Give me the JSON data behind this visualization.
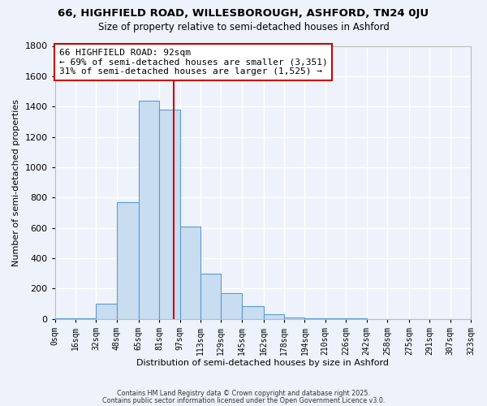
{
  "title_line1": "66, HIGHFIELD ROAD, WILLESBOROUGH, ASHFORD, TN24 0JU",
  "title_line2": "Size of property relative to semi-detached houses in Ashford",
  "xlabel": "Distribution of semi-detached houses by size in Ashford",
  "ylabel": "Number of semi-detached properties",
  "bin_edges": [
    0,
    16,
    32,
    48,
    65,
    81,
    97,
    113,
    129,
    145,
    162,
    178,
    194,
    210,
    226,
    242,
    258,
    275,
    291,
    307,
    323
  ],
  "bin_labels": [
    "0sqm",
    "16sqm",
    "32sqm",
    "48sqm",
    "65sqm",
    "81sqm",
    "97sqm",
    "113sqm",
    "129sqm",
    "145sqm",
    "162sqm",
    "178sqm",
    "194sqm",
    "210sqm",
    "226sqm",
    "242sqm",
    "258sqm",
    "275sqm",
    "291sqm",
    "307sqm",
    "323sqm"
  ],
  "counts": [
    2,
    2,
    100,
    770,
    1440,
    1380,
    610,
    300,
    170,
    85,
    30,
    10,
    5,
    2,
    1,
    0,
    0,
    0,
    0,
    0
  ],
  "bar_color": "#c9ddf0",
  "bar_edge_color": "#5b9bd5",
  "vline_color": "#cc0000",
  "vline_x": 92,
  "annotation_title": "66 HIGHFIELD ROAD: 92sqm",
  "annotation_line2": "← 69% of semi-detached houses are smaller (3,351)",
  "annotation_line3": "31% of semi-detached houses are larger (1,525) →",
  "annotation_box_edge": "#cc0000",
  "ylim": [
    0,
    1800
  ],
  "yticks": [
    0,
    200,
    400,
    600,
    800,
    1000,
    1200,
    1400,
    1600,
    1800
  ],
  "background_color": "#eef3fb",
  "grid_color": "#ffffff",
  "footer_line1": "Contains HM Land Registry data © Crown copyright and database right 2025.",
  "footer_line2": "Contains public sector information licensed under the Open Government Licence v3.0."
}
